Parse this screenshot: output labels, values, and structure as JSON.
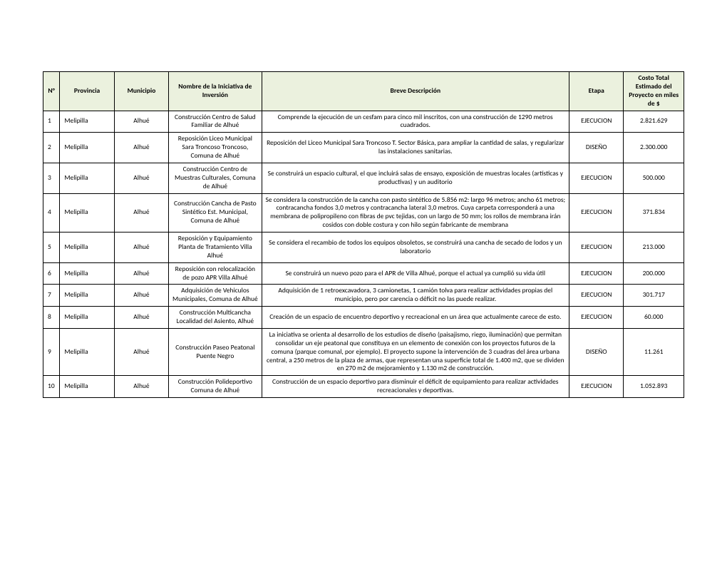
{
  "table": {
    "headers": {
      "num": "N°",
      "provincia": "Provincia",
      "municipio": "Municipio",
      "nombre": "Nombre de la Iniciativa de Inversión",
      "descripcion": "Breve Descripción",
      "etapa": "Etapa",
      "costo": "Costo Total Estimado del Proyecto en miles de $"
    },
    "rows": [
      {
        "num": "1",
        "provincia": "Melipilla",
        "municipio": "Alhué",
        "nombre": "Construcción Centro de Salud Familiar de Alhué",
        "descripcion": "Comprende la ejecución de un cesfam para cinco mil inscritos, con una construcción de 1290 metros cuadrados.",
        "etapa": "EJECUCION",
        "costo": "2.821.629"
      },
      {
        "num": "2",
        "provincia": "Melipilla",
        "municipio": "Alhué",
        "nombre": "Reposición Liceo Municipal Sara Troncoso Troncoso, Comuna de Alhué",
        "descripcion": "Reposición del Liceo Municipal Sara Troncoso T. Sector Básica,  para ampliar la cantidad de salas, y regularizar las instalaciones sanitarias.",
        "etapa": "DISEÑO",
        "costo": "2.300.000"
      },
      {
        "num": "3",
        "provincia": "Melipilla",
        "municipio": "Alhué",
        "nombre": "Construcción Centro de Muestras Culturales, Comuna de Alhué",
        "descripcion": "Se construirá un espacio cultural, el que incluirá salas de ensayo, exposición de muestras locales (artísticas y productivas) y un auditorio",
        "etapa": "EJECUCION",
        "costo": "500.000"
      },
      {
        "num": "4",
        "provincia": "Melipilla",
        "municipio": "Alhué",
        "nombre": "Construcción Cancha de Pasto Sintético Est. Municipal, Comuna de Alhué",
        "descripcion": "Se considera la construcción de la cancha con pasto sintético de 5.856 m2: largo 96 metros; ancho 61 metros; contracancha fondos 3,0 metros y contracancha lateral 3,0 metros. Cuya carpeta corresponderá a una membrana de polipropileno con fibras de pvc tejidas, con un largo de 50 mm; los rollos de membrana irán cosidos con doble costura y con hilo según fabricante de membrana",
        "etapa": "EJECUCION",
        "costo": "371.834"
      },
      {
        "num": "5",
        "provincia": "Melipilla",
        "municipio": "Alhué",
        "nombre": "Reposición y Equipamiento Planta de Tratamiento Villa Alhué",
        "descripcion": "Se considera el recambio de todos los equipos obsoletos, se construirá una cancha de secado de lodos y un laboratorio",
        "etapa": "EJECUCION",
        "costo": "213.000"
      },
      {
        "num": "6",
        "provincia": "Melipilla",
        "municipio": "Alhué",
        "nombre": "Reposición con relocalización de pozo APR Villa Alhué",
        "descripcion": "Se construirá un nuevo pozo para el APR  de Villa Alhué, porque el actual ya cumplió su vida útil",
        "etapa": "EJECUCION",
        "costo": "200.000"
      },
      {
        "num": "7",
        "provincia": "Melipilla",
        "municipio": "Alhué",
        "nombre": "Adquisición de Vehiculos Municipales, Comuna de Alhué",
        "descripcion": "Adquisición de 1 retroexcavadora, 3 camionetas, 1 camión tolva para realizar actividades propias del municipio, pero por carencia o déficit no las puede realizar.",
        "etapa": "EJECUCION",
        "costo": "301.717"
      },
      {
        "num": "8",
        "provincia": "Melipilla",
        "municipio": "Alhué",
        "nombre": "Construcción Multicancha Localidad del Asiento, Alhué",
        "descripcion": "Creación de un espacio de encuentro deportivo y recreacional en un área que actualmente carece de esto.",
        "etapa": "EJECUCION",
        "costo": "60.000"
      },
      {
        "num": "9",
        "provincia": "Melipilla",
        "municipio": "Alhué",
        "nombre": "Construcción Paseo Peatonal Puente Negro",
        "descripcion": "La iniciativa se orienta al desarrollo de los estudios de diseño (paisajismo, riego, iluminación) que permitan consolidar un eje peatonal que constituya en un elemento de conexión con los proyectos futuros de la comuna (parque comunal, por ejemplo). El proyecto supone la intervención de 3 cuadras del área urbana central, a 250 metros de la plaza de armas, que representan una superficie total de 1.400 m2, que se dividen en 270 m2 de mejoramiento y 1.130 m2 de construcción.",
        "etapa": "DISEÑO",
        "costo": "11.261"
      },
      {
        "num": "10",
        "provincia": "Melipilla",
        "municipio": "Alhué",
        "nombre": "Construcción Polideportivo Comuna de Alhué",
        "descripcion": "Construcción de un espacio deportivo para disminuir el déficit de equipamiento para realizar actividades recreacionales y deportivas.",
        "etapa": "EJECUCION",
        "costo": "1.052.893"
      }
    ]
  }
}
